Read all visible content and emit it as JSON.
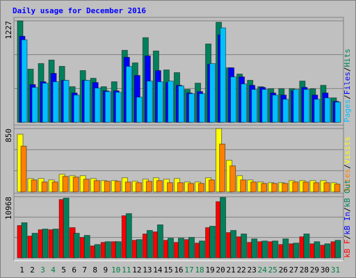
{
  "chart_data": [
    {
      "type": "bar",
      "title": "Daily usage for December 2016",
      "ylim": [
        0,
        1227
      ],
      "yticks": [
        1227
      ],
      "grid_divisions": 3,
      "legend_separator": "/",
      "legend_reversed": true,
      "series": [
        {
          "name": "Hits",
          "color": "#00805c",
          "values": [
            1227,
            643,
            711,
            753,
            677,
            431,
            626,
            533,
            431,
            491,
            871,
            719,
            1024,
            863,
            634,
            601,
            398,
            474,
            948,
            1210,
            660,
            584,
            508,
            431,
            406,
            406,
            406,
            499,
            406,
            448,
            296
          ]
        },
        {
          "name": "Files",
          "color": "#0000ff",
          "values": [
            1041,
            457,
            491,
            592,
            508,
            355,
            508,
            482,
            381,
            381,
            787,
            567,
            804,
            626,
            482,
            448,
            355,
            372,
            702,
            1058,
            660,
            550,
            448,
            423,
            355,
            330,
            381,
            423,
            330,
            355,
            254
          ]
        },
        {
          "name": "Pages",
          "color": "#00c0ff",
          "values": [
            998,
            423,
            474,
            491,
            508,
            330,
            508,
            415,
            372,
            364,
            677,
            305,
            499,
            491,
            499,
            440,
            347,
            347,
            711,
            1142,
            550,
            465,
            398,
            398,
            330,
            279,
            398,
            398,
            279,
            296,
            245
          ]
        }
      ]
    },
    {
      "type": "bar",
      "ylim": [
        0,
        850
      ],
      "yticks": [
        850
      ],
      "grid_divisions": 3,
      "legend_separator": "/",
      "legend_reversed": true,
      "series": [
        {
          "name": "Visits",
          "color": "#ffff00",
          "values": [
            774,
            179,
            179,
            160,
            236,
            217,
            217,
            179,
            151,
            151,
            189,
            142,
            170,
            189,
            170,
            179,
            132,
            132,
            189,
            850,
            425,
            217,
            160,
            132,
            123,
            123,
            151,
            151,
            151,
            151,
            123
          ]
        },
        {
          "name": "Sites",
          "color": "#ff8000",
          "values": [
            614,
            160,
            132,
            132,
            208,
            198,
            170,
            151,
            142,
            142,
            132,
            123,
            142,
            151,
            123,
            123,
            113,
            113,
            160,
            642,
            349,
            160,
            132,
            113,
            113,
            113,
            132,
            132,
            123,
            123,
            104
          ]
        }
      ]
    },
    {
      "type": "bar",
      "ylim": [
        0,
        10968
      ],
      "yticks": [
        10968
      ],
      "grid_divisions": 3,
      "legend_separator": "/",
      "legend_reversed": false,
      "categories": [
        "1",
        "2",
        "3",
        "4",
        "5",
        "6",
        "7",
        "8",
        "9",
        "10",
        "11",
        "12",
        "13",
        "14",
        "15",
        "16",
        "17",
        "18",
        "19",
        "20",
        "21",
        "22",
        "23",
        "24",
        "25",
        "26",
        "27",
        "28",
        "29",
        "30",
        "31"
      ],
      "weekend_color": "#008040",
      "weekend_indices": [
        2,
        3,
        9,
        10,
        16,
        17,
        23,
        24,
        30
      ],
      "series": [
        {
          "name": "kB F",
          "color": "#ff0000",
          "values": [
            5799,
            3906,
            5042,
            5042,
            10464,
            5420,
            3654,
            2142,
            2772,
            2898,
            7560,
            3150,
            4284,
            4662,
            3150,
            2772,
            3276,
            2646,
            5420,
            10080,
            4536,
            3780,
            2772,
            2898,
            2898,
            2394,
            2520,
            3780,
            2520,
            2268,
            2898
          ]
        },
        {
          "name": "kB In",
          "color": "#0000ff",
          "values": [
            null,
            null,
            null,
            null,
            null,
            null,
            null,
            null,
            null,
            null,
            null,
            null,
            null,
            null,
            null,
            null,
            null,
            null,
            null,
            null,
            null,
            null,
            null,
            null,
            null,
            null,
            null,
            null,
            null,
            null,
            null
          ]
        },
        {
          "name": "kB Out",
          "color": "#00805c",
          "values": [
            6300,
            4410,
            5168,
            5168,
            10716,
            4410,
            4032,
            2394,
            2898,
            2898,
            7938,
            3276,
            4914,
            5924,
            3528,
            3528,
            3654,
            3024,
            5672,
            10842,
            4914,
            4284,
            3402,
            3024,
            3024,
            3402,
            2646,
            4284,
            2898,
            2520,
            3150
          ]
        }
      ]
    }
  ]
}
